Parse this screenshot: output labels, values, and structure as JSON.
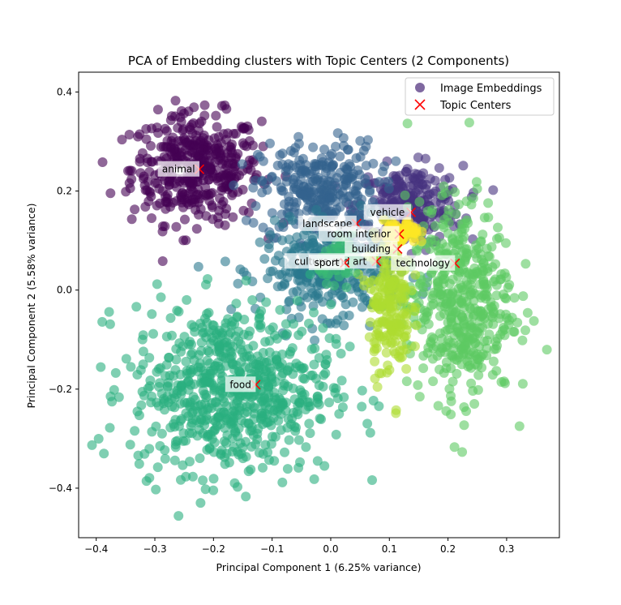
{
  "chart_data": {
    "type": "scatter",
    "title": "PCA of Embedding clusters with Topic Centers (2 Components)",
    "xlabel": "Principal Component 1 (6.25% variance)",
    "ylabel": "Principal Component 2 (5.58% variance)",
    "xlim": [
      -0.43,
      0.39
    ],
    "ylim": [
      -0.5,
      0.44
    ],
    "xticks": [
      -0.4,
      -0.3,
      -0.2,
      -0.1,
      0.0,
      0.1,
      0.2,
      0.3
    ],
    "xtick_labels": [
      "−0.4",
      "−0.3",
      "−0.2",
      "−0.1",
      "0.0",
      "0.1",
      "0.2",
      "0.3"
    ],
    "yticks": [
      -0.4,
      -0.2,
      0.0,
      0.2,
      0.4
    ],
    "ytick_labels": [
      "−0.4",
      "−0.2",
      "0.0",
      "0.2",
      "0.4"
    ],
    "grid": false,
    "legend": {
      "placement": "top-right",
      "entries": [
        {
          "label": "Image Embeddings",
          "marker": "circle",
          "color": "#482878"
        },
        {
          "label": "Topic Centers",
          "marker": "x",
          "color": "#ff0000"
        }
      ]
    },
    "clusters": [
      {
        "id": "animal",
        "color": "#440154",
        "center": [
          -0.23,
          0.245
        ],
        "spread": [
          0.055,
          0.055
        ],
        "count": 420
      },
      {
        "id": "vehicle",
        "color": "#46327e",
        "center": [
          0.135,
          0.17
        ],
        "spread": [
          0.045,
          0.04
        ],
        "count": 260
      },
      {
        "id": "landscape",
        "color": "#33638d",
        "center": [
          -0.02,
          0.2
        ],
        "spread": [
          0.05,
          0.05
        ],
        "count": 300
      },
      {
        "id": "culture and art",
        "color": "#2a788e",
        "center": [
          0.0,
          0.04
        ],
        "spread": [
          0.06,
          0.045
        ],
        "count": 320
      },
      {
        "id": "food",
        "color": "#29af7f",
        "center": [
          -0.17,
          -0.2
        ],
        "spread": [
          0.085,
          0.085
        ],
        "count": 720
      },
      {
        "id": "technology",
        "color": "#5ec962",
        "center": [
          0.22,
          -0.02
        ],
        "spread": [
          0.045,
          0.1
        ],
        "count": 480
      },
      {
        "id": "building",
        "color": "#addc30",
        "center": [
          0.1,
          -0.03
        ],
        "spread": [
          0.018,
          0.07
        ],
        "count": 200
      },
      {
        "id": "room interior",
        "color": "#fde725",
        "center": [
          0.12,
          0.115
        ],
        "spread": [
          0.015,
          0.012
        ],
        "count": 70
      },
      {
        "id": "sport",
        "color": "#3bbb75",
        "center": [
          0.02,
          0.06
        ],
        "spread": [
          0.02,
          0.02
        ],
        "count": 60
      }
    ],
    "topic_centers": [
      {
        "label": "animal",
        "x": -0.224,
        "y": 0.244
      },
      {
        "label": "vehicle",
        "x": 0.137,
        "y": 0.157
      },
      {
        "label": "landscape",
        "x": 0.044,
        "y": 0.134
      },
      {
        "label": "room interior",
        "x": 0.117,
        "y": 0.113
      },
      {
        "label": "building",
        "x": 0.114,
        "y": 0.083
      },
      {
        "label": "culture and art",
        "x": 0.078,
        "y": 0.058
      },
      {
        "label": "sport",
        "x": 0.024,
        "y": 0.055
      },
      {
        "label": "technology",
        "x": 0.212,
        "y": 0.054
      },
      {
        "label": "food",
        "x": -0.128,
        "y": -0.191
      }
    ]
  }
}
